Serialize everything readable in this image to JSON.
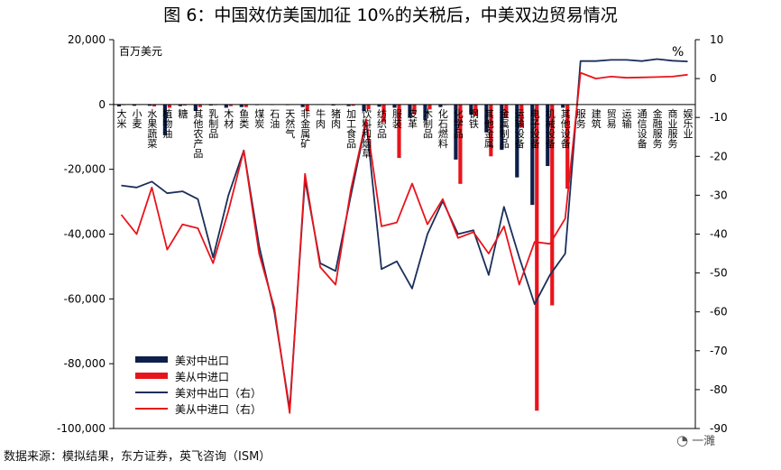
{
  "title": "图 6：中国效仿美国加征 10%的关税后，中美双边贸易情况",
  "source": "数据来源：模拟结果，东方证券，英飞咨询（ISM）",
  "watermark": "一濉",
  "chart_data": {
    "type": "bar+line",
    "unit_left": "百万美元",
    "unit_right": "%",
    "ylim_left": [
      -100000,
      20000
    ],
    "yticks_left": [
      20000,
      0,
      -20000,
      -40000,
      -60000,
      -80000,
      -100000
    ],
    "yticks_left_labels": [
      "20,000",
      "0",
      "-20,000",
      "-40,000",
      "-60,000",
      "-80,000",
      "-100,000"
    ],
    "ylim_right": [
      -90,
      10
    ],
    "yticks_right": [
      10,
      0,
      -10,
      -20,
      -30,
      -40,
      -50,
      -60,
      -70,
      -80,
      -90
    ],
    "yticks_right_labels": [
      "10",
      "0",
      "-10",
      "-20",
      "-30",
      "-40",
      "-50",
      "-60",
      "-70",
      "-80",
      "-90"
    ],
    "categories": [
      "大米",
      "小麦",
      "水果蔬菜",
      "植物油",
      "糖",
      "其他农产品",
      "乳制品",
      "木材",
      "鱼类",
      "煤炭",
      "石油",
      "天然气",
      "非金属矿",
      "牛肉",
      "猪肉",
      "加工食品",
      "饮料和烟草",
      "纺织品",
      "服装",
      "皮革",
      "木制品",
      "化石燃料",
      "化学品",
      "钢铁",
      "其他金属",
      "金属制品",
      "运输设备",
      "电子设备",
      "机械设备",
      "其他设备",
      "服务",
      "建筑",
      "贸易",
      "运输",
      "通信设备",
      "金融服务",
      "商业服务",
      "娱乐业"
    ],
    "series": [
      {
        "name": "美对中出口",
        "type": "bar",
        "axis": "left",
        "color": "#0d1f4a",
        "values": [
          -600,
          -400,
          -400,
          -9500,
          -500,
          -2000,
          -300,
          -1000,
          -800,
          -200,
          -150,
          -200,
          -800,
          -100,
          -300,
          -500,
          -2000,
          -700,
          -1000,
          -4000,
          -4800,
          -800,
          -17000,
          -3000,
          -8500,
          -14000,
          -22500,
          -31000,
          -19000,
          -1000,
          0,
          0,
          0,
          0,
          0,
          0,
          0,
          0
        ]
      },
      {
        "name": "美从中进口",
        "type": "bar",
        "axis": "left",
        "color": "#e8141c",
        "values": [
          -200,
          -100,
          -600,
          -1000,
          -300,
          -800,
          -200,
          -500,
          -800,
          -100,
          -50,
          -100,
          -2000,
          -150,
          -100,
          -400,
          -1500,
          -5500,
          -16500,
          -3000,
          -1500,
          -200,
          -24500,
          -3500,
          -16000,
          -4200,
          -7000,
          -94500,
          -62000,
          -26000,
          0,
          0,
          0,
          0,
          0,
          0,
          0,
          0
        ]
      },
      {
        "name": "美对中出口（右）",
        "type": "line",
        "axis": "right",
        "color": "#1a2f5a",
        "values": [
          -27.5,
          -28,
          -26.5,
          -29.5,
          -29,
          -31,
          -46,
          -30,
          -18.5,
          -43,
          -60,
          -85,
          -26,
          -47.5,
          -49.5,
          -30,
          -11,
          -49,
          -47,
          -54,
          -40,
          -31.5,
          -40,
          -39,
          -50.5,
          -33,
          -46,
          -58,
          -50.5,
          -45,
          4.5,
          4.5,
          4.8,
          4.8,
          4.5,
          5,
          4.6,
          4.4
        ]
      },
      {
        "name": "美从中进口（右）",
        "type": "line",
        "axis": "right",
        "color": "#e8141c",
        "values": [
          -35,
          -40,
          -28,
          -44,
          -37.5,
          -38.5,
          -47.5,
          -34,
          -18.5,
          -45,
          -59,
          -86,
          -24.5,
          -48.5,
          -53,
          -28.5,
          -10.5,
          -38,
          -37,
          -27,
          -37.5,
          -31,
          -41,
          -39.5,
          -45,
          -38,
          -53,
          -42,
          -42.5,
          -36,
          1.5,
          0,
          0.5,
          0.2,
          0.3,
          0.4,
          0.5,
          1
        ]
      }
    ]
  }
}
